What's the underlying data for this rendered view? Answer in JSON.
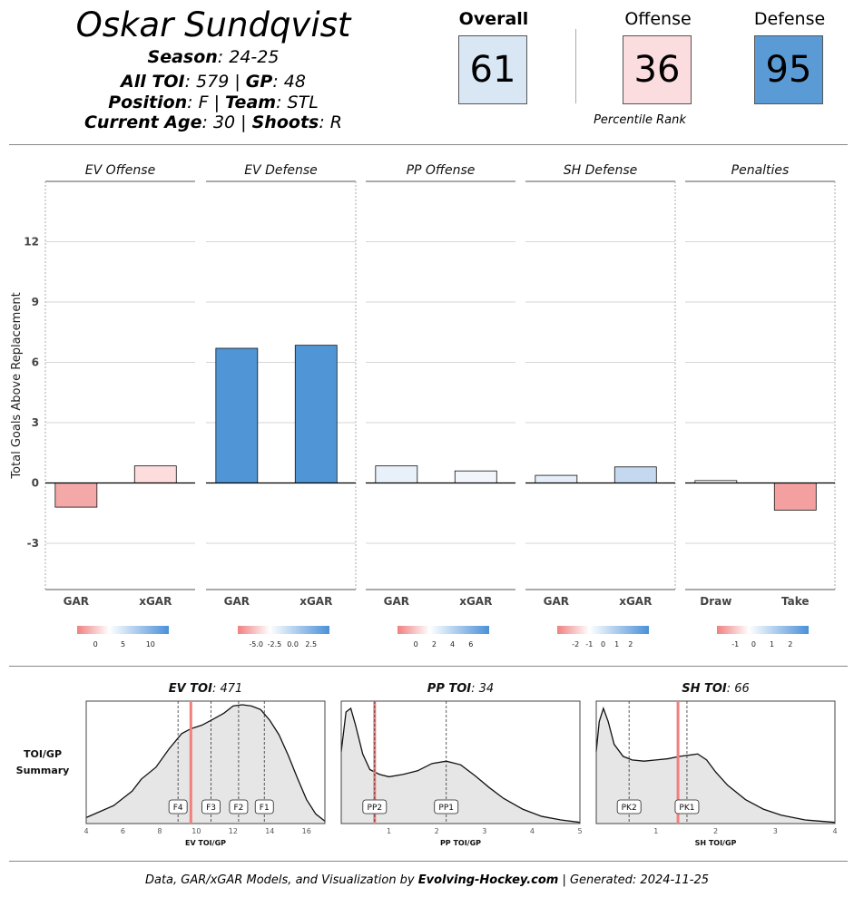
{
  "player": {
    "name": "Oskar Sundqvist",
    "season_label": "Season",
    "season": "24-25",
    "toi_label": "All TOI",
    "toi": "579",
    "gp_label": "GP",
    "gp": "48",
    "position_label": "Position",
    "position": "F",
    "team_label": "Team",
    "team": "STL",
    "age_label": "Current Age",
    "age": "30",
    "shoots_label": "Shoots",
    "shoots": "R"
  },
  "ratings": {
    "overall_label": "Overall",
    "overall": "61",
    "offense_label": "Offense",
    "offense": "36",
    "defense_label": "Defense",
    "defense": "95",
    "subtitle": "Percentile Rank",
    "colors": {
      "overall": "#d9e7f5",
      "offense": "#fbdcdf",
      "defense": "#5b9bd5"
    }
  },
  "chart_data": [
    {
      "type": "bar",
      "ylabel": "Total Goals Above Replacement",
      "ylim": [
        -5.3,
        15
      ],
      "yticks": [
        -3,
        0,
        3,
        6,
        9,
        12
      ],
      "panels": [
        {
          "title": "EV Offense",
          "categories": [
            "GAR",
            "xGAR"
          ],
          "values": [
            -1.2,
            0.85
          ],
          "colors": [
            "#f4a8a8",
            "#fcdcdc"
          ],
          "legend_ticks": [
            "0",
            "5",
            "10"
          ]
        },
        {
          "title": "EV Defense",
          "categories": [
            "GAR",
            "xGAR"
          ],
          "values": [
            6.7,
            6.85
          ],
          "colors": [
            "#5096d6",
            "#5096d6"
          ],
          "legend_ticks": [
            "-5.0",
            "-2.5",
            "0.0",
            "2.5"
          ]
        },
        {
          "title": "PP Offense",
          "categories": [
            "GAR",
            "xGAR"
          ],
          "values": [
            0.85,
            0.6
          ],
          "colors": [
            "#e8f0fa",
            "#f2f6fc"
          ],
          "legend_ticks": [
            "0",
            "2",
            "4",
            "6"
          ]
        },
        {
          "title": "SH Defense",
          "categories": [
            "GAR",
            "xGAR"
          ],
          "values": [
            0.38,
            0.8
          ],
          "colors": [
            "#e6eef9",
            "#c4d9f0"
          ],
          "legend_ticks": [
            "-2",
            "-1",
            "0",
            "1",
            "2"
          ]
        },
        {
          "title": "Penalties",
          "categories": [
            "Draw",
            "Take"
          ],
          "values": [
            0.12,
            -1.35
          ],
          "colors": [
            "#ffffff",
            "#f4a0a0"
          ],
          "legend_ticks": [
            "-1",
            "0",
            "1",
            "2"
          ]
        }
      ]
    },
    {
      "type": "area",
      "row_label_1": "TOI/GP",
      "row_label_2": "Summary",
      "marker_color": "#f08080",
      "panels": [
        {
          "title_bold": "EV TOI",
          "title_value": "471",
          "xlabel": "EV TOI/GP",
          "xlim": [
            4,
            17
          ],
          "xticks": [
            "4",
            "6",
            "8",
            "10",
            "12",
            "14",
            "16"
          ],
          "player_value": 9.7,
          "markers": [
            {
              "label": "F4",
              "x": 9.0
            },
            {
              "label": "F3",
              "x": 10.8
            },
            {
              "label": "F2",
              "x": 12.3
            },
            {
              "label": "F1",
              "x": 13.7
            }
          ],
          "density_x": [
            4.0,
            5.5,
            6.5,
            7.0,
            7.8,
            8.5,
            9.2,
            9.7,
            10.3,
            10.8,
            11.5,
            12.0,
            12.5,
            13.0,
            13.5,
            14.0,
            14.5,
            15.0,
            15.5,
            16.0,
            16.5,
            17.0
          ],
          "density_y": [
            0.05,
            0.15,
            0.27,
            0.37,
            0.47,
            0.62,
            0.75,
            0.79,
            0.82,
            0.86,
            0.92,
            0.98,
            0.99,
            0.98,
            0.95,
            0.86,
            0.74,
            0.57,
            0.38,
            0.2,
            0.08,
            0.02
          ]
        },
        {
          "title_bold": "PP TOI",
          "title_value": "34",
          "xlabel": "PP TOI/GP",
          "xlim": [
            0,
            5
          ],
          "xticks": [
            "1",
            "2",
            "3",
            "4",
            "5"
          ],
          "player_value": 0.7,
          "markers": [
            {
              "label": "PP2",
              "x": 0.7
            },
            {
              "label": "PP1",
              "x": 2.2
            }
          ],
          "density_x": [
            0.0,
            0.1,
            0.2,
            0.3,
            0.45,
            0.6,
            0.8,
            1.0,
            1.3,
            1.6,
            1.9,
            2.2,
            2.5,
            2.8,
            3.1,
            3.4,
            3.8,
            4.2,
            4.6,
            5.0
          ],
          "density_y": [
            0.6,
            0.93,
            0.96,
            0.82,
            0.58,
            0.45,
            0.41,
            0.39,
            0.41,
            0.44,
            0.5,
            0.52,
            0.49,
            0.4,
            0.3,
            0.21,
            0.12,
            0.06,
            0.03,
            0.01
          ]
        },
        {
          "title_bold": "SH TOI",
          "title_value": "66",
          "xlabel": "SH TOI/GP",
          "xlim": [
            0,
            4
          ],
          "xticks": [
            "1",
            "2",
            "3",
            "4"
          ],
          "player_value": 1.37,
          "markers": [
            {
              "label": "PK2",
              "x": 0.55
            },
            {
              "label": "PK1",
              "x": 1.52
            }
          ],
          "density_x": [
            0.0,
            0.05,
            0.12,
            0.2,
            0.3,
            0.45,
            0.6,
            0.8,
            1.0,
            1.2,
            1.4,
            1.55,
            1.7,
            1.85,
            2.0,
            2.2,
            2.5,
            2.8,
            3.1,
            3.5,
            4.0
          ],
          "density_y": [
            0.6,
            0.85,
            0.96,
            0.85,
            0.66,
            0.56,
            0.53,
            0.52,
            0.53,
            0.54,
            0.56,
            0.57,
            0.58,
            0.53,
            0.43,
            0.32,
            0.2,
            0.12,
            0.07,
            0.03,
            0.01
          ]
        }
      ]
    }
  ],
  "footer": {
    "prefix": "Data, GAR/xGAR Models, and Visualization by ",
    "brand": "Evolving-Hockey.com",
    "suffix": " | Generated: 2024-11-25"
  }
}
